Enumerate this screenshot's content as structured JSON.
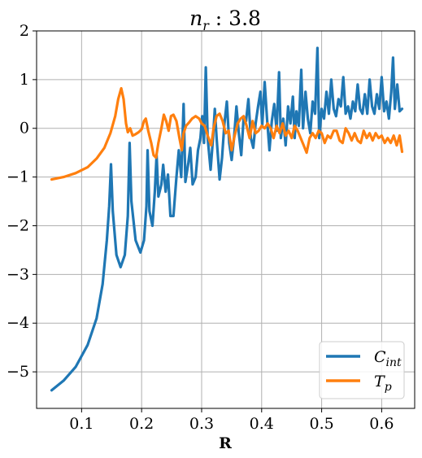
{
  "chart_data": {
    "type": "line",
    "title_base": "n",
    "title_sub": "r",
    "title_value": " : 3.8",
    "xlabel": "R",
    "ylabel": "",
    "xlim": [
      0.025,
      0.655
    ],
    "ylim": [
      -5.75,
      2.0
    ],
    "x_ticks": [
      0.1,
      0.2,
      0.3,
      0.4,
      0.5,
      0.6
    ],
    "x_tick_labels": [
      "0.1",
      "0.2",
      "0.3",
      "0.4",
      "0.5",
      "0.6"
    ],
    "y_ticks": [
      2,
      1,
      0,
      -1,
      -2,
      -3,
      -4,
      -5
    ],
    "y_tick_labels": [
      "2",
      "1",
      "0",
      "−1",
      "−2",
      "−3",
      "−4",
      "−5"
    ],
    "grid": true,
    "legend_position": "lower-right",
    "series": [
      {
        "name_base": "C",
        "name_sub": "int",
        "color": "#1f77b4",
        "points": [
          [
            0.05,
            -5.38
          ],
          [
            0.07,
            -5.18
          ],
          [
            0.09,
            -4.9
          ],
          [
            0.11,
            -4.45
          ],
          [
            0.125,
            -3.9
          ],
          [
            0.135,
            -3.2
          ],
          [
            0.142,
            -2.3
          ],
          [
            0.146,
            -1.6
          ],
          [
            0.149,
            -0.74
          ],
          [
            0.152,
            -1.7
          ],
          [
            0.158,
            -2.6
          ],
          [
            0.165,
            -2.85
          ],
          [
            0.172,
            -2.6
          ],
          [
            0.177,
            -1.8
          ],
          [
            0.18,
            -0.3
          ],
          [
            0.183,
            -1.5
          ],
          [
            0.19,
            -2.3
          ],
          [
            0.198,
            -2.55
          ],
          [
            0.204,
            -2.3
          ],
          [
            0.208,
            -1.6
          ],
          [
            0.21,
            -0.45
          ],
          [
            0.213,
            -1.7
          ],
          [
            0.218,
            -2.0
          ],
          [
            0.222,
            -1.3
          ],
          [
            0.225,
            -0.55
          ],
          [
            0.228,
            -1.4
          ],
          [
            0.233,
            -1.15
          ],
          [
            0.236,
            -0.75
          ],
          [
            0.24,
            -1.3
          ],
          [
            0.244,
            -0.95
          ],
          [
            0.248,
            -1.8
          ],
          [
            0.253,
            -1.8
          ],
          [
            0.258,
            -1.0
          ],
          [
            0.262,
            -0.45
          ],
          [
            0.266,
            -1.0
          ],
          [
            0.27,
            0.5
          ],
          [
            0.273,
            -1.1
          ],
          [
            0.278,
            -0.7
          ],
          [
            0.281,
            -0.4
          ],
          [
            0.285,
            -1.15
          ],
          [
            0.29,
            -1.0
          ],
          [
            0.294,
            -0.45
          ],
          [
            0.298,
            -0.2
          ],
          [
            0.301,
            0.25
          ],
          [
            0.304,
            -0.3
          ],
          [
            0.307,
            1.25
          ],
          [
            0.31,
            -0.2
          ],
          [
            0.315,
            -0.85
          ],
          [
            0.319,
            -0.2
          ],
          [
            0.322,
            0.4
          ],
          [
            0.325,
            -0.2
          ],
          [
            0.33,
            -1.05
          ],
          [
            0.334,
            -0.6
          ],
          [
            0.338,
            0.1
          ],
          [
            0.342,
            0.55
          ],
          [
            0.346,
            -0.3
          ],
          [
            0.35,
            -0.65
          ],
          [
            0.354,
            -0.2
          ],
          [
            0.358,
            0.45
          ],
          [
            0.362,
            -0.1
          ],
          [
            0.366,
            -0.55
          ],
          [
            0.37,
            0.2
          ],
          [
            0.374,
            0.15
          ],
          [
            0.378,
            0.6
          ],
          [
            0.382,
            -0.2
          ],
          [
            0.386,
            -0.4
          ],
          [
            0.39,
            0.1
          ],
          [
            0.394,
            0.45
          ],
          [
            0.398,
            0.75
          ],
          [
            0.401,
            0.05
          ],
          [
            0.405,
            0.95
          ],
          [
            0.409,
            0.2
          ],
          [
            0.413,
            -0.45
          ],
          [
            0.417,
            0.15
          ],
          [
            0.421,
            0.5
          ],
          [
            0.425,
            -0.05
          ],
          [
            0.429,
            1.15
          ],
          [
            0.432,
            -0.2
          ],
          [
            0.436,
            0.2
          ],
          [
            0.44,
            -0.35
          ],
          [
            0.444,
            0.45
          ],
          [
            0.448,
            0.1
          ],
          [
            0.452,
            0.65
          ],
          [
            0.455,
            -0.2
          ],
          [
            0.458,
            0.35
          ],
          [
            0.462,
            0.05
          ],
          [
            0.466,
            1.2
          ],
          [
            0.469,
            0.0
          ],
          [
            0.473,
            0.75
          ],
          [
            0.477,
            0.2
          ],
          [
            0.481,
            -0.1
          ],
          [
            0.485,
            0.55
          ],
          [
            0.489,
            0.3
          ],
          [
            0.493,
            1.65
          ],
          [
            0.496,
            -0.2
          ],
          [
            0.5,
            0.4
          ],
          [
            0.504,
            0.2
          ],
          [
            0.508,
            0.75
          ],
          [
            0.512,
            0.3
          ],
          [
            0.516,
            1.0
          ],
          [
            0.52,
            0.4
          ],
          [
            0.524,
            0.25
          ],
          [
            0.528,
            0.6
          ],
          [
            0.532,
            0.45
          ],
          [
            0.536,
            1.05
          ],
          [
            0.54,
            0.3
          ],
          [
            0.544,
            0.45
          ],
          [
            0.548,
            0.2
          ],
          [
            0.552,
            0.55
          ],
          [
            0.556,
            0.35
          ],
          [
            0.56,
            0.9
          ],
          [
            0.564,
            0.4
          ],
          [
            0.568,
            0.3
          ],
          [
            0.572,
            0.7
          ],
          [
            0.576,
            0.3
          ],
          [
            0.58,
            1.0
          ],
          [
            0.584,
            0.45
          ],
          [
            0.588,
            0.3
          ],
          [
            0.592,
            0.7
          ],
          [
            0.596,
            0.4
          ],
          [
            0.6,
            1.05
          ],
          [
            0.604,
            0.35
          ],
          [
            0.608,
            0.55
          ],
          [
            0.612,
            0.2
          ],
          [
            0.616,
            0.75
          ],
          [
            0.619,
            1.45
          ],
          [
            0.622,
            0.4
          ],
          [
            0.626,
            0.9
          ],
          [
            0.63,
            0.35
          ],
          [
            0.634,
            0.4
          ]
        ]
      },
      {
        "name_base": "T",
        "name_sub": "p",
        "color": "#ff7f0e",
        "points": [
          [
            0.05,
            -1.05
          ],
          [
            0.07,
            -1.0
          ],
          [
            0.09,
            -0.92
          ],
          [
            0.11,
            -0.8
          ],
          [
            0.125,
            -0.62
          ],
          [
            0.138,
            -0.4
          ],
          [
            0.148,
            -0.1
          ],
          [
            0.156,
            0.25
          ],
          [
            0.161,
            0.6
          ],
          [
            0.166,
            0.82
          ],
          [
            0.17,
            0.6
          ],
          [
            0.174,
            0.1
          ],
          [
            0.177,
            -0.08
          ],
          [
            0.181,
            0.0
          ],
          [
            0.185,
            -0.15
          ],
          [
            0.19,
            -0.12
          ],
          [
            0.195,
            -0.08
          ],
          [
            0.2,
            -0.02
          ],
          [
            0.204,
            0.15
          ],
          [
            0.207,
            0.2
          ],
          [
            0.211,
            -0.05
          ],
          [
            0.216,
            -0.3
          ],
          [
            0.22,
            -0.55
          ],
          [
            0.224,
            -0.6
          ],
          [
            0.228,
            -0.3
          ],
          [
            0.233,
            0.0
          ],
          [
            0.237,
            0.28
          ],
          [
            0.241,
            0.15
          ],
          [
            0.245,
            -0.05
          ],
          [
            0.249,
            0.25
          ],
          [
            0.253,
            0.28
          ],
          [
            0.258,
            0.15
          ],
          [
            0.263,
            -0.2
          ],
          [
            0.267,
            -0.45
          ],
          [
            0.27,
            -0.1
          ],
          [
            0.274,
            0.05
          ],
          [
            0.279,
            0.12
          ],
          [
            0.284,
            0.2
          ],
          [
            0.29,
            0.25
          ],
          [
            0.296,
            0.2
          ],
          [
            0.3,
            0.1
          ],
          [
            0.305,
            0.05
          ],
          [
            0.31,
            -0.15
          ],
          [
            0.316,
            -0.35
          ],
          [
            0.32,
            0.0
          ],
          [
            0.325,
            0.25
          ],
          [
            0.33,
            0.3
          ],
          [
            0.335,
            0.15
          ],
          [
            0.34,
            -0.1
          ],
          [
            0.345,
            -0.05
          ],
          [
            0.35,
            -0.45
          ],
          [
            0.355,
            -0.15
          ],
          [
            0.36,
            0.1
          ],
          [
            0.365,
            0.2
          ],
          [
            0.37,
            0.25
          ],
          [
            0.375,
            0.05
          ],
          [
            0.38,
            -0.2
          ],
          [
            0.385,
            0.15
          ],
          [
            0.39,
            -0.1
          ],
          [
            0.395,
            -0.05
          ],
          [
            0.4,
            0.05
          ],
          [
            0.405,
            0.0
          ],
          [
            0.41,
            0.1
          ],
          [
            0.415,
            0.0
          ],
          [
            0.42,
            -0.2
          ],
          [
            0.425,
            0.05
          ],
          [
            0.43,
            -0.1
          ],
          [
            0.435,
            0.1
          ],
          [
            0.44,
            -0.15
          ],
          [
            0.445,
            -0.05
          ],
          [
            0.45,
            -0.2
          ],
          [
            0.455,
            0.05
          ],
          [
            0.46,
            -0.05
          ],
          [
            0.465,
            -0.2
          ],
          [
            0.47,
            -0.35
          ],
          [
            0.475,
            -0.5
          ],
          [
            0.48,
            -0.2
          ],
          [
            0.485,
            -0.1
          ],
          [
            0.49,
            -0.2
          ],
          [
            0.495,
            -0.05
          ],
          [
            0.5,
            -0.1
          ],
          [
            0.505,
            -0.3
          ],
          [
            0.51,
            -0.15
          ],
          [
            0.515,
            -0.2
          ],
          [
            0.52,
            -0.05
          ],
          [
            0.525,
            -0.05
          ],
          [
            0.53,
            -0.25
          ],
          [
            0.535,
            -0.3
          ],
          [
            0.54,
            0.0
          ],
          [
            0.545,
            -0.1
          ],
          [
            0.55,
            -0.25
          ],
          [
            0.555,
            -0.1
          ],
          [
            0.56,
            -0.25
          ],
          [
            0.565,
            -0.3
          ],
          [
            0.57,
            -0.05
          ],
          [
            0.575,
            -0.2
          ],
          [
            0.58,
            -0.1
          ],
          [
            0.585,
            -0.25
          ],
          [
            0.59,
            -0.1
          ],
          [
            0.595,
            -0.2
          ],
          [
            0.6,
            -0.15
          ],
          [
            0.605,
            -0.3
          ],
          [
            0.61,
            -0.2
          ],
          [
            0.615,
            -0.3
          ],
          [
            0.62,
            -0.15
          ],
          [
            0.625,
            -0.35
          ],
          [
            0.63,
            -0.15
          ],
          [
            0.634,
            -0.48
          ]
        ]
      }
    ]
  }
}
